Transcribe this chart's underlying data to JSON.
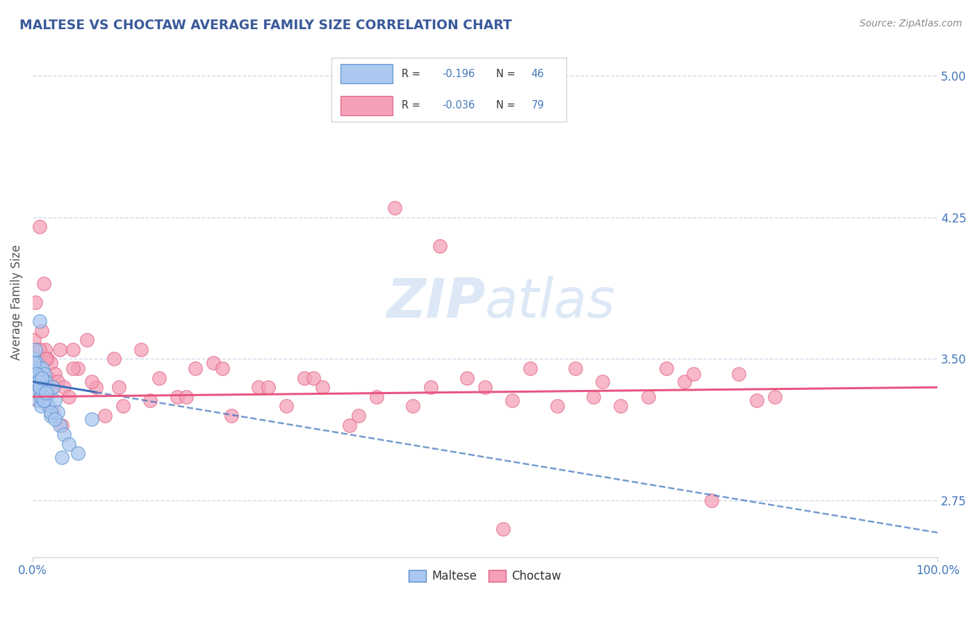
{
  "title": "MALTESE VS CHOCTAW AVERAGE FAMILY SIZE CORRELATION CHART",
  "source_text": "Source: ZipAtlas.com",
  "ylabel": "Average Family Size",
  "xlim": [
    0.0,
    100.0
  ],
  "ylim": [
    2.45,
    5.15
  ],
  "yticks": [
    2.75,
    3.5,
    4.25,
    5.0
  ],
  "xticks": [
    0.0,
    100.0
  ],
  "xticklabels": [
    "0.0%",
    "100.0%"
  ],
  "yticklabels": [
    "2.75",
    "3.50",
    "4.25",
    "5.00"
  ],
  "maltese_R": -0.196,
  "maltese_N": 46,
  "choctaw_R": -0.036,
  "choctaw_N": 79,
  "maltese_color": "#aac8f0",
  "choctaw_color": "#f5a0b8",
  "maltese_edge": "#5a8fcc",
  "choctaw_edge": "#e06080",
  "trend_maltese_color": "#3a6fbb",
  "trend_choctaw_color": "#e85580",
  "title_color": "#3a5a9a",
  "axis_color": "#4477bb",
  "grid_color": "#d0d8e8",
  "watermark_color": "#dce8f5",
  "background_color": "#ffffff",
  "maltese_x": [
    0.1,
    0.15,
    0.2,
    0.25,
    0.3,
    0.35,
    0.4,
    0.45,
    0.5,
    0.55,
    0.6,
    0.65,
    0.7,
    0.75,
    0.8,
    0.85,
    0.9,
    0.95,
    1.0,
    1.1,
    1.2,
    1.3,
    1.4,
    1.5,
    1.6,
    1.7,
    1.8,
    2.0,
    2.2,
    2.5,
    2.8,
    3.0,
    3.5,
    4.0,
    5.0,
    6.5,
    0.2,
    0.4,
    0.6,
    0.8,
    1.0,
    1.2,
    1.5,
    2.0,
    2.5,
    3.2
  ],
  "maltese_y": [
    3.42,
    3.5,
    3.38,
    3.45,
    3.55,
    3.4,
    3.35,
    3.48,
    3.42,
    3.38,
    3.32,
    3.28,
    3.45,
    3.35,
    3.7,
    3.4,
    3.25,
    3.3,
    3.38,
    3.45,
    3.35,
    3.42,
    3.28,
    3.38,
    3.3,
    3.32,
    3.25,
    3.2,
    3.35,
    3.28,
    3.22,
    3.15,
    3.1,
    3.05,
    3.0,
    3.18,
    3.48,
    3.42,
    3.38,
    3.35,
    3.4,
    3.28,
    3.32,
    3.22,
    3.18,
    2.98
  ],
  "choctaw_x": [
    0.1,
    0.2,
    0.3,
    0.4,
    0.5,
    0.6,
    0.7,
    0.8,
    0.9,
    1.0,
    1.2,
    1.4,
    1.6,
    1.8,
    2.0,
    2.2,
    2.5,
    2.8,
    3.0,
    3.5,
    4.0,
    4.5,
    5.0,
    6.0,
    7.0,
    8.0,
    9.0,
    10.0,
    12.0,
    14.0,
    16.0,
    18.0,
    20.0,
    22.0,
    25.0,
    28.0,
    30.0,
    32.0,
    35.0,
    38.0,
    40.0,
    42.0,
    45.0,
    48.0,
    50.0,
    52.0,
    55.0,
    58.0,
    60.0,
    62.0,
    65.0,
    68.0,
    70.0,
    72.0,
    75.0,
    78.0,
    80.0,
    0.15,
    0.35,
    0.55,
    0.75,
    1.1,
    1.5,
    2.2,
    3.2,
    4.5,
    6.5,
    9.5,
    13.0,
    17.0,
    21.0,
    26.0,
    31.0,
    36.0,
    44.0,
    53.0,
    63.0,
    73.0,
    82.0
  ],
  "choctaw_y": [
    3.45,
    3.6,
    3.55,
    3.48,
    3.38,
    3.42,
    3.5,
    4.2,
    3.35,
    3.65,
    3.9,
    3.55,
    3.5,
    3.4,
    3.48,
    3.35,
    3.42,
    3.38,
    3.55,
    3.35,
    3.3,
    3.55,
    3.45,
    3.6,
    3.35,
    3.2,
    3.5,
    3.25,
    3.55,
    3.4,
    3.3,
    3.45,
    3.48,
    3.2,
    3.35,
    3.25,
    3.4,
    3.35,
    3.15,
    3.3,
    4.3,
    3.25,
    4.1,
    3.4,
    3.35,
    2.6,
    3.45,
    3.25,
    3.45,
    3.3,
    3.25,
    3.3,
    3.45,
    3.38,
    2.75,
    3.42,
    3.28,
    3.35,
    3.8,
    3.28,
    3.55,
    3.4,
    3.5,
    3.22,
    3.15,
    3.45,
    3.38,
    3.35,
    3.28,
    3.3,
    3.45,
    3.35,
    3.4,
    3.2,
    3.35,
    3.28,
    3.38,
    3.42,
    3.3
  ],
  "maltese_data_max_x": 7.0,
  "choctaw_trend_y0": 3.3,
  "choctaw_trend_y1": 3.35,
  "maltese_trend_y0": 3.38,
  "maltese_trend_y1": 2.58
}
